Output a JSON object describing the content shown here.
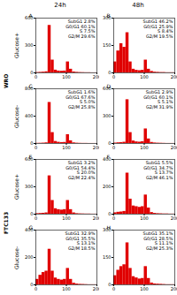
{
  "figure": {
    "columns": [
      "24h",
      "48h"
    ],
    "groups": [
      {
        "label": "WRO",
        "rows": [
          "Glucose+",
          "Glucose-"
        ]
      },
      {
        "label": "FTC133",
        "rows": [
          "Glucose+",
          "Glucose-"
        ]
      }
    ]
  },
  "chart_data": [
    {
      "type": "histogram",
      "title": "A",
      "color": "#e00000",
      "bins": [
        0,
        10,
        20,
        30,
        40,
        50,
        60,
        70,
        80,
        90,
        100,
        110,
        120,
        130,
        140,
        150,
        160,
        170,
        180,
        190,
        200
      ],
      "values": [
        4,
        6,
        8,
        12,
        520,
        140,
        30,
        20,
        18,
        20,
        120,
        40,
        10,
        6,
        4,
        3,
        2,
        2,
        1,
        1
      ],
      "xlim": [
        0,
        200
      ],
      "xticks": [
        0,
        100,
        200
      ],
      "ylim": [
        0,
        600
      ],
      "yticks": [
        0,
        300,
        600
      ],
      "annotations": [
        "SubG1 2.8%",
        "G0/G1 60.1%",
        "S 7.5%",
        "G2/M 29.6%"
      ]
    },
    {
      "type": "histogram",
      "title": "B",
      "color": "#e00000",
      "bins": [
        0,
        10,
        20,
        30,
        40,
        50,
        60,
        70,
        80,
        90,
        100,
        110,
        120,
        130,
        140,
        150,
        160,
        170,
        180,
        190,
        200
      ],
      "values": [
        60,
        120,
        160,
        140,
        220,
        60,
        20,
        14,
        12,
        14,
        70,
        20,
        8,
        4,
        3,
        2,
        2,
        1,
        1,
        1
      ],
      "xlim": [
        0,
        200
      ],
      "xticks": [
        0,
        100,
        200
      ],
      "ylim": [
        0,
        300
      ],
      "yticks": [
        0,
        150,
        300
      ],
      "annotations": [
        "SubG1 46.2%",
        "G0/G1 25.9%",
        "S 8.4%",
        "G2/M 19.5%"
      ]
    },
    {
      "type": "histogram",
      "title": "C",
      "color": "#e00000",
      "bins": [
        0,
        10,
        20,
        30,
        40,
        50,
        60,
        70,
        80,
        90,
        100,
        110,
        120,
        130,
        140,
        150,
        160,
        170,
        180,
        190,
        200
      ],
      "values": [
        3,
        4,
        6,
        10,
        600,
        160,
        30,
        18,
        14,
        16,
        130,
        40,
        10,
        5,
        3,
        2,
        2,
        1,
        1,
        1
      ],
      "xlim": [
        0,
        200
      ],
      "xticks": [
        0,
        100,
        200
      ],
      "ylim": [
        0,
        800
      ],
      "yticks": [
        0,
        400,
        800
      ],
      "annotations": [
        "SubG1 1.6%",
        "G0/G1 67.6%",
        "S 5.0%",
        "G2/M 25.8%"
      ]
    },
    {
      "type": "histogram",
      "title": "D",
      "color": "#e00000",
      "bins": [
        0,
        10,
        20,
        30,
        40,
        50,
        60,
        70,
        80,
        90,
        100,
        110,
        120,
        130,
        140,
        150,
        160,
        170,
        180,
        190,
        200
      ],
      "values": [
        5,
        8,
        10,
        14,
        480,
        120,
        28,
        18,
        15,
        20,
        160,
        50,
        12,
        6,
        4,
        3,
        2,
        1,
        1,
        1
      ],
      "xlim": [
        0,
        200
      ],
      "xticks": [
        0,
        100,
        200
      ],
      "ylim": [
        0,
        600
      ],
      "yticks": [
        0,
        300,
        600
      ],
      "annotations": [
        "SubG1 2.9%",
        "G0/G1 60.1%",
        "S 5.1%",
        "G2/M 31.9%"
      ]
    },
    {
      "type": "histogram",
      "title": "E",
      "color": "#e00000",
      "bins": [
        0,
        10,
        20,
        30,
        40,
        50,
        60,
        70,
        80,
        90,
        100,
        110,
        120,
        130,
        140,
        150,
        160,
        170,
        180,
        190,
        200
      ],
      "values": [
        6,
        8,
        10,
        14,
        420,
        150,
        60,
        50,
        45,
        50,
        150,
        50,
        14,
        6,
        4,
        3,
        2,
        2,
        1,
        1
      ],
      "xlim": [
        0,
        200
      ],
      "xticks": [
        0,
        100,
        200
      ],
      "ylim": [
        0,
        600
      ],
      "yticks": [
        0,
        300,
        600
      ],
      "annotations": [
        "SubG1 3.2%",
        "G0/G1 54.4%",
        "S 20.0%",
        "G2/M 22.4%"
      ]
    },
    {
      "type": "histogram",
      "title": "F",
      "color": "#e00000",
      "bins": [
        0,
        10,
        20,
        30,
        40,
        50,
        60,
        70,
        80,
        90,
        100,
        110,
        120,
        130,
        140,
        150,
        160,
        170,
        180,
        190,
        200
      ],
      "values": [
        10,
        14,
        16,
        20,
        300,
        110,
        60,
        55,
        50,
        55,
        140,
        45,
        12,
        6,
        4,
        3,
        2,
        2,
        1,
        1
      ],
      "xlim": [
        0,
        200
      ],
      "xticks": [
        0,
        100,
        200
      ],
      "ylim": [
        0,
        400
      ],
      "yticks": [
        0,
        200,
        400
      ],
      "annotations": [
        "SubG1 5.5%",
        "G0/G1 34.7%",
        "S 13.7%",
        "G2/M 46.1%"
      ]
    },
    {
      "type": "histogram",
      "title": "G",
      "color": "#e00000",
      "bins": [
        0,
        10,
        20,
        30,
        40,
        50,
        60,
        70,
        80,
        90,
        100,
        110,
        120,
        130,
        140,
        150,
        160,
        170,
        180,
        190,
        200
      ],
      "values": [
        40,
        70,
        90,
        100,
        260,
        100,
        50,
        40,
        35,
        40,
        120,
        40,
        12,
        6,
        4,
        3,
        2,
        1,
        1,
        1
      ],
      "xlim": [
        0,
        200
      ],
      "xticks": [
        0,
        100,
        200
      ],
      "ylim": [
        0,
        400
      ],
      "yticks": [
        0,
        200,
        400
      ],
      "annotations": [
        "SubG1 32.9%",
        "G0/G1 35.5%",
        "S 13.1%",
        "G2/M 18.5%"
      ]
    },
    {
      "type": "histogram",
      "title": "H",
      "color": "#e00000",
      "bins": [
        0,
        10,
        20,
        30,
        40,
        50,
        60,
        70,
        80,
        90,
        100,
        110,
        120,
        130,
        140,
        150,
        160,
        170,
        180,
        190,
        200
      ],
      "values": [
        50,
        80,
        100,
        110,
        230,
        90,
        45,
        38,
        32,
        35,
        100,
        35,
        10,
        5,
        4,
        3,
        2,
        1,
        1,
        1
      ],
      "xlim": [
        0,
        200
      ],
      "xticks": [
        0,
        100,
        200
      ],
      "ylim": [
        0,
        300
      ],
      "yticks": [
        0,
        150,
        300
      ],
      "annotations": [
        "SubG1 35.1%",
        "G0/G1 28.5%",
        "S 11.1%",
        "G2/M 25.3%"
      ]
    }
  ]
}
